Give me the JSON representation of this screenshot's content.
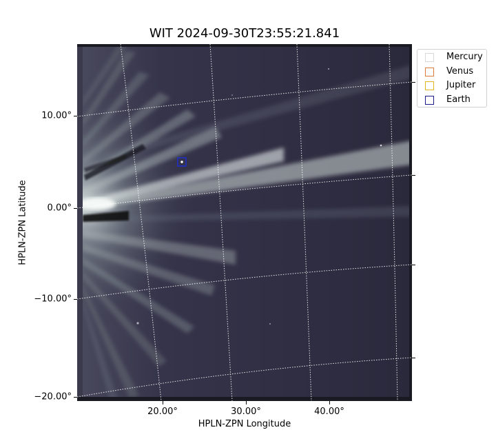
{
  "title": "WIT 2024-09-30T23:55:21.841",
  "xlabel": "HPLN-ZPN Longitude",
  "ylabel": "HPLN-ZPN Latitude",
  "y_ticks": [
    "10.00°",
    "0.00°",
    "−10.00°",
    "−20.00°"
  ],
  "x_ticks": [
    "20.00°",
    "30.00°",
    "40.00°"
  ],
  "legend": [
    {
      "label": "Mercury",
      "color": "#d8d8d8"
    },
    {
      "label": "Venus",
      "color": "#e07b39"
    },
    {
      "label": "Jupiter",
      "color": "#e6b422"
    },
    {
      "label": "Earth",
      "color": "#1a1a8c"
    }
  ],
  "earth_marker_color": "#1f2fd0",
  "image_colors": {
    "background": "#2b2a3b",
    "streamer": "#c7d0d0",
    "dark_band": "#0a0a10"
  }
}
